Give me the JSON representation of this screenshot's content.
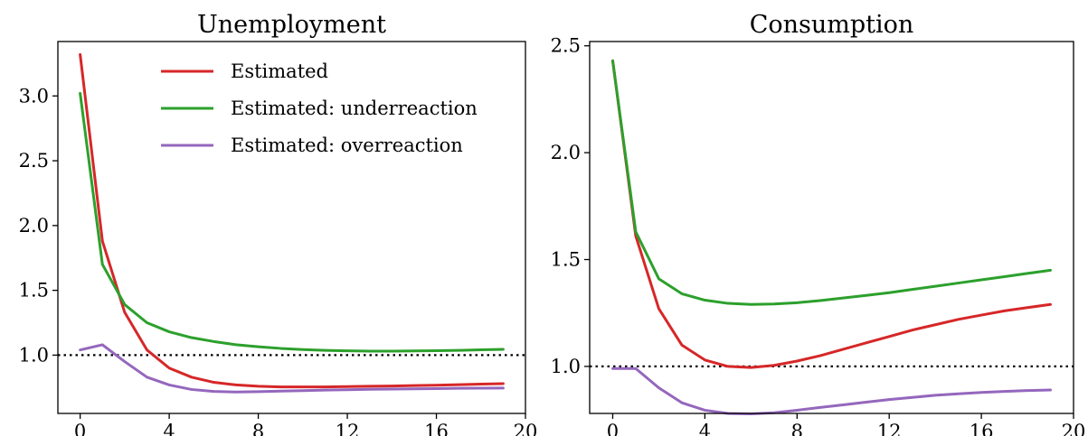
{
  "chart_data": [
    {
      "type": "line",
      "title": "Unemployment",
      "xlim": [
        -1,
        20
      ],
      "ylim": [
        0.55,
        3.42
      ],
      "xticks": [
        0,
        4,
        8,
        12,
        16,
        20
      ],
      "yticks": [
        1.0,
        1.5,
        2.0,
        2.5,
        3.0
      ],
      "grid": false,
      "legend": "upper right",
      "reference_line": {
        "y": 1.0,
        "style": "dotted",
        "color": "#000000"
      },
      "x": [
        0,
        1,
        2,
        3,
        4,
        5,
        6,
        7,
        8,
        9,
        10,
        11,
        12,
        13,
        14,
        15,
        16,
        17,
        18,
        19
      ],
      "series": [
        {
          "name": "Estimated",
          "color": "#d62728",
          "values": [
            3.32,
            1.88,
            1.33,
            1.04,
            0.9,
            0.83,
            0.79,
            0.77,
            0.76,
            0.755,
            0.755,
            0.755,
            0.757,
            0.76,
            0.762,
            0.765,
            0.768,
            0.772,
            0.776,
            0.78
          ]
        },
        {
          "name": "Estimated: underreaction",
          "color": "#2ca02c",
          "values": [
            3.02,
            1.7,
            1.39,
            1.25,
            1.18,
            1.135,
            1.105,
            1.08,
            1.065,
            1.052,
            1.043,
            1.037,
            1.033,
            1.031,
            1.031,
            1.032,
            1.034,
            1.037,
            1.041,
            1.045
          ]
        },
        {
          "name": "Estimated: overreaction",
          "color": "#9467bd",
          "values": [
            1.04,
            1.08,
            0.95,
            0.83,
            0.77,
            0.735,
            0.72,
            0.715,
            0.718,
            0.722,
            0.726,
            0.73,
            0.733,
            0.736,
            0.738,
            0.74,
            0.742,
            0.744,
            0.745,
            0.746
          ]
        }
      ]
    },
    {
      "type": "line",
      "title": "Consumption",
      "xlim": [
        -1,
        20
      ],
      "ylim": [
        0.78,
        2.52
      ],
      "xticks": [
        0,
        4,
        8,
        12,
        16,
        20
      ],
      "yticks": [
        1.0,
        1.5,
        2.0,
        2.5
      ],
      "grid": false,
      "reference_line": {
        "y": 1.0,
        "style": "dotted",
        "color": "#000000"
      },
      "x": [
        0,
        1,
        2,
        3,
        4,
        5,
        6,
        7,
        8,
        9,
        10,
        11,
        12,
        13,
        14,
        15,
        16,
        17,
        18,
        19
      ],
      "series": [
        {
          "name": "Estimated",
          "color": "#d62728",
          "values": [
            2.43,
            1.61,
            1.27,
            1.1,
            1.03,
            1.0,
            0.995,
            1.005,
            1.025,
            1.05,
            1.08,
            1.11,
            1.14,
            1.17,
            1.195,
            1.22,
            1.24,
            1.26,
            1.275,
            1.29
          ]
        },
        {
          "name": "Estimated: underreaction",
          "color": "#2ca02c",
          "values": [
            2.43,
            1.63,
            1.41,
            1.34,
            1.31,
            1.295,
            1.29,
            1.292,
            1.298,
            1.308,
            1.32,
            1.332,
            1.345,
            1.36,
            1.375,
            1.39,
            1.405,
            1.42,
            1.435,
            1.45
          ]
        },
        {
          "name": "Estimated: overreaction",
          "color": "#9467bd",
          "values": [
            0.99,
            0.99,
            0.9,
            0.83,
            0.795,
            0.78,
            0.778,
            0.783,
            0.795,
            0.808,
            0.82,
            0.833,
            0.845,
            0.855,
            0.865,
            0.872,
            0.878,
            0.883,
            0.887,
            0.89
          ]
        }
      ]
    }
  ]
}
